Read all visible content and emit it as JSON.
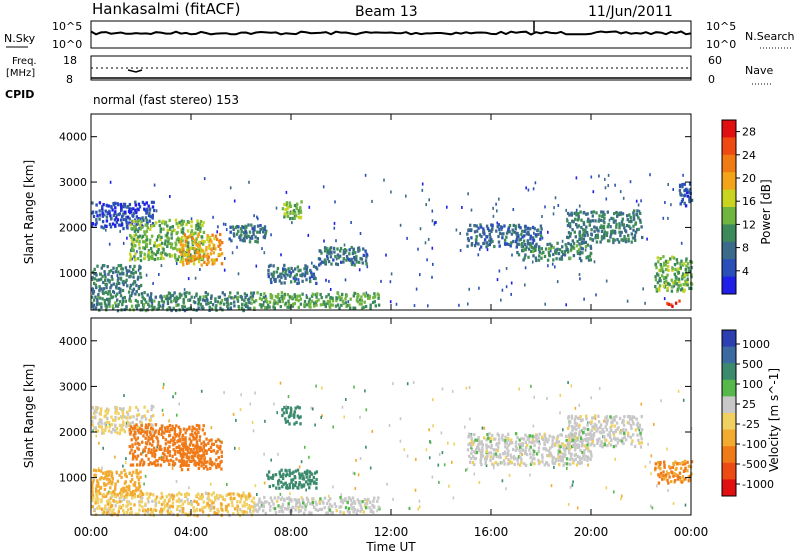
{
  "header": {
    "station": "Hankasalmi (fitACF)",
    "beam": "Beam 13",
    "date": "11/Jun/2011"
  },
  "top_panels": {
    "nsky_label": "N.Sky",
    "nsearch_label": "N.Search",
    "freq_label_1": "Freq.",
    "freq_label_2": "[MHz]",
    "nave_label": "Nave",
    "cpid_label": "CPID",
    "noise_ticks_left": [
      "10^5",
      "10^0"
    ],
    "noise_ticks_right": [
      "10^5",
      "10^0"
    ],
    "freq_ticks": [
      "18",
      "8"
    ],
    "nave_ticks": [
      "60",
      "0"
    ],
    "cpid_text": "normal (fast stereo) 153"
  },
  "colors": {
    "power_scale": [
      "#1f1fe8",
      "#2a4fb8",
      "#3b6a8a",
      "#3c8a5a",
      "#6fb540",
      "#c9d420",
      "#f2a51a",
      "#f07a14",
      "#ee4a12",
      "#e01010"
    ],
    "velocity_scale": [
      "#2b3fb0",
      "#3a6aa0",
      "#3b8a6e",
      "#56b84a",
      "#c8c8c8",
      "#f0d060",
      "#f2aa30",
      "#f07a18",
      "#ee4a14",
      "#e01010"
    ]
  },
  "chart_data": [
    {
      "type": "heatmap",
      "name": "power",
      "ylabel": "Slant Range [km]",
      "yticks": [
        "1000",
        "2000",
        "3000",
        "4000"
      ],
      "ylim": [
        180,
        4500
      ],
      "xlim": [
        0,
        24
      ],
      "colorbar_label": "Power [dB]",
      "colorbar_ticks": [
        "4",
        "8",
        "12",
        "16",
        "20",
        "24",
        "28"
      ],
      "regions": [
        {
          "t0": 0.0,
          "t1": 2.5,
          "r0": 2000,
          "r1": 2600,
          "level": 4
        },
        {
          "t0": 1.5,
          "t1": 4.5,
          "r0": 1300,
          "r1": 2200,
          "level": 13
        },
        {
          "t0": 3.5,
          "t1": 5.2,
          "r0": 1200,
          "r1": 1900,
          "level": 20
        },
        {
          "t0": 0.0,
          "t1": 2.0,
          "r0": 600,
          "r1": 1200,
          "level": 9
        },
        {
          "t0": 5.5,
          "t1": 7.0,
          "r0": 1700,
          "r1": 2100,
          "level": 8
        },
        {
          "t0": 7.6,
          "t1": 8.4,
          "r0": 2200,
          "r1": 2600,
          "level": 14
        },
        {
          "t0": 7.0,
          "t1": 9.0,
          "r0": 800,
          "r1": 1200,
          "level": 8
        },
        {
          "t0": 9.0,
          "t1": 11.0,
          "r0": 1200,
          "r1": 1600,
          "level": 8
        },
        {
          "t0": 6.5,
          "t1": 11.5,
          "r0": 250,
          "r1": 600,
          "level": 12
        },
        {
          "t0": 0.0,
          "t1": 6.5,
          "r0": 200,
          "r1": 600,
          "level": 10
        },
        {
          "t0": 15.0,
          "t1": 18.0,
          "r0": 1600,
          "r1": 2100,
          "level": 7
        },
        {
          "t0": 17.0,
          "t1": 20.0,
          "r0": 1300,
          "r1": 1700,
          "level": 10
        },
        {
          "t0": 19.0,
          "t1": 22.0,
          "r0": 1700,
          "r1": 2400,
          "level": 9
        },
        {
          "t0": 22.5,
          "t1": 24.0,
          "r0": 600,
          "r1": 1400,
          "level": 13
        },
        {
          "t0": 23.0,
          "t1": 23.5,
          "r0": 280,
          "r1": 420,
          "level": 28
        },
        {
          "t0": 23.5,
          "t1": 24.0,
          "r0": 2500,
          "r1": 3000,
          "level": 5
        }
      ]
    },
    {
      "type": "heatmap",
      "name": "velocity",
      "ylabel": "Slant Range [km]",
      "yticks": [
        "1000",
        "2000",
        "3000",
        "4000"
      ],
      "ylim": [
        180,
        4500
      ],
      "xlim": [
        0,
        24
      ],
      "xlabel": "Time UT",
      "xticks": [
        "00:00",
        "04:00",
        "08:00",
        "12:00",
        "16:00",
        "20:00",
        "00:00"
      ],
      "colorbar_label": "Velocity [m s^-1]",
      "colorbar_ticks": [
        "1000",
        "500",
        "100",
        "25",
        "-25",
        "-100",
        "-500",
        "-1000"
      ],
      "regions": [
        {
          "t0": 0.0,
          "t1": 2.5,
          "r0": 2000,
          "r1": 2600,
          "level": -30
        },
        {
          "t0": 1.5,
          "t1": 4.5,
          "r0": 1300,
          "r1": 2200,
          "level": -500
        },
        {
          "t0": 3.5,
          "t1": 5.2,
          "r0": 1200,
          "r1": 1900,
          "level": -600
        },
        {
          "t0": 0.0,
          "t1": 2.0,
          "r0": 600,
          "r1": 1200,
          "level": -100
        },
        {
          "t0": 7.6,
          "t1": 8.4,
          "r0": 2200,
          "r1": 2600,
          "level": 200
        },
        {
          "t0": 7.0,
          "t1": 9.0,
          "r0": 800,
          "r1": 1200,
          "level": 100
        },
        {
          "t0": 15.0,
          "t1": 20.0,
          "r0": 1300,
          "r1": 2000,
          "level": 0
        },
        {
          "t0": 19.0,
          "t1": 22.0,
          "r0": 1700,
          "r1": 2400,
          "level": 0
        },
        {
          "t0": 22.5,
          "t1": 24.0,
          "r0": 900,
          "r1": 1400,
          "level": -300
        },
        {
          "t0": 0.0,
          "t1": 6.5,
          "r0": 200,
          "r1": 700,
          "level": -50
        },
        {
          "t0": 6.5,
          "t1": 11.5,
          "r0": 250,
          "r1": 600,
          "level": 0
        }
      ]
    }
  ]
}
